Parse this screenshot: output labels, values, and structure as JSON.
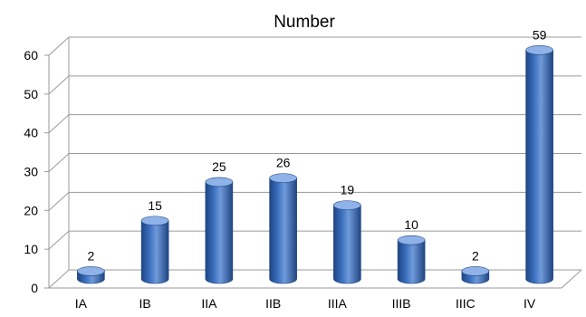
{
  "chart_data": {
    "type": "bar",
    "title": "Number",
    "xlabel": "",
    "ylabel": "",
    "categories": [
      "IA",
      "IB",
      "IIA",
      "IIB",
      "IIIA",
      "IIIB",
      "IIIC",
      "IV"
    ],
    "values": [
      2,
      15,
      25,
      26,
      19,
      10,
      2,
      59
    ],
    "ylim": [
      0,
      60
    ],
    "yticks": [
      0,
      10,
      20,
      30,
      40,
      50,
      60
    ],
    "grid": true,
    "legend": "none",
    "bar_color": "#3a6fbf",
    "bar_color_dark": "#1f4582",
    "bar_color_light": "#8fb3e8",
    "grid_color": "#9a9a9a"
  }
}
